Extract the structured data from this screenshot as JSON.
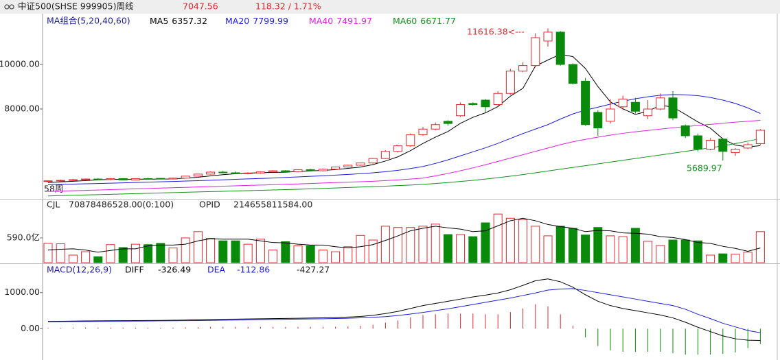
{
  "header": {
    "title": "中证500(SHSE 999905)周线",
    "price": "7047.56",
    "change": "118.32 / 1.71%"
  },
  "chart_data": [
    {
      "type": "candlestick",
      "legend_title": "MA组合(5,20,40,60)",
      "period_label": "58周",
      "annotations": [
        "11616.38<---",
        "5689.97"
      ],
      "up_color": "#e3262d",
      "down_color": "#0a8a0a",
      "open": [
        4750,
        4780,
        4800,
        4830,
        4860,
        4840,
        4880,
        4820,
        4880,
        4890,
        4860,
        4900,
        4990,
        5080,
        5170,
        5140,
        5100,
        5130,
        5180,
        5230,
        5190,
        5280,
        5230,
        5300,
        5400,
        5480,
        5580,
        5780,
        6100,
        6350,
        6850,
        7100,
        7450,
        7700,
        8250,
        8400,
        8200,
        8700,
        9700,
        9950,
        11050,
        11450,
        10000,
        9250,
        7850,
        7450,
        8100,
        8300,
        7700,
        8000,
        8500,
        7250,
        6800,
        6200,
        6650,
        6050,
        6250,
        6450
      ],
      "high": [
        4800,
        4830,
        4860,
        4880,
        4900,
        4900,
        4900,
        4900,
        4920,
        4910,
        4920,
        5000,
        5100,
        5200,
        5230,
        5200,
        5160,
        5200,
        5260,
        5260,
        5300,
        5320,
        5330,
        5420,
        5500,
        5600,
        5800,
        6150,
        6400,
        6900,
        7200,
        7400,
        7500,
        8300,
        8300,
        8450,
        8800,
        9800,
        10100,
        11400,
        11616.38,
        11500,
        10050,
        9400,
        7950,
        8450,
        8600,
        8500,
        8400,
        8700,
        8800,
        7300,
        6900,
        6700,
        6700,
        6250,
        6500,
        7100
      ],
      "low": [
        4700,
        4740,
        4780,
        4800,
        4820,
        4800,
        4800,
        4800,
        4850,
        4840,
        4840,
        4880,
        4970,
        5060,
        5120,
        5080,
        5070,
        5100,
        5150,
        5180,
        5160,
        5200,
        5200,
        5280,
        5370,
        5450,
        5550,
        5760,
        6050,
        6300,
        6800,
        7050,
        7250,
        7650,
        8150,
        7850,
        8150,
        8650,
        9650,
        9900,
        10800,
        9950,
        9100,
        7250,
        6800,
        7350,
        7950,
        7800,
        7550,
        7950,
        7500,
        6700,
        6100,
        6150,
        5689.97,
        5900,
        6200,
        6400
      ],
      "close": [
        4780,
        4800,
        4830,
        4860,
        4840,
        4880,
        4820,
        4880,
        4860,
        4860,
        4900,
        4990,
        5080,
        5170,
        5140,
        5100,
        5130,
        5180,
        5230,
        5190,
        5280,
        5230,
        5300,
        5400,
        5480,
        5580,
        5780,
        6100,
        6350,
        6850,
        7100,
        7300,
        7350,
        8200,
        8200,
        8100,
        8700,
        9700,
        9950,
        11200,
        11450,
        10000,
        9150,
        7300,
        7150,
        8000,
        8450,
        7900,
        8000,
        8500,
        7600,
        6800,
        6200,
        6600,
        6100,
        6200,
        6400,
        7047.56
      ],
      "series": [
        {
          "name": "MA5",
          "color": "#000000",
          "values": [
            4700,
            4730,
            4760,
            4790,
            4822,
            4842,
            4846,
            4856,
            4856,
            4860,
            4864,
            4902,
            4938,
            5000,
            5056,
            5096,
            5124,
            5144,
            5156,
            5166,
            5202,
            5222,
            5246,
            5280,
            5338,
            5398,
            5508,
            5668,
            5858,
            6132,
            6456,
            6740,
            6990,
            7360,
            7630,
            7830,
            8110,
            8580,
            8930,
            9930,
            10200,
            10460,
            10350,
            9820,
            9010,
            8320,
            8010,
            7760,
            7900,
            8170,
            8090,
            7760,
            7420,
            7140,
            6660,
            6380,
            6300,
            6357.32
          ]
        },
        {
          "name": "MA20",
          "color": "#1c1ce0",
          "values": [
            4600,
            4615,
            4630,
            4645,
            4660,
            4675,
            4690,
            4705,
            4720,
            4735,
            4750,
            4768,
            4786,
            4805,
            4825,
            4845,
            4865,
            4885,
            4905,
            4930,
            4955,
            4980,
            5005,
            5035,
            5065,
            5100,
            5140,
            5190,
            5250,
            5330,
            5420,
            5560,
            5720,
            5900,
            6080,
            6260,
            6460,
            6680,
            6900,
            7100,
            7300,
            7550,
            7780,
            7950,
            8080,
            8220,
            8350,
            8460,
            8550,
            8620,
            8650,
            8640,
            8600,
            8520,
            8400,
            8250,
            8050,
            7799.99
          ]
        },
        {
          "name": "MA40",
          "color": "#e020e0",
          "values": [
            4300,
            4317,
            4334,
            4351,
            4368,
            4385,
            4402,
            4419,
            4436,
            4453,
            4470,
            4487,
            4504,
            4521,
            4538,
            4555,
            4572,
            4589,
            4606,
            4623,
            4640,
            4660,
            4680,
            4700,
            4720,
            4740,
            4760,
            4790,
            4820,
            4860,
            4900,
            5000,
            5110,
            5230,
            5360,
            5500,
            5650,
            5800,
            5950,
            6100,
            6250,
            6400,
            6530,
            6640,
            6740,
            6830,
            6910,
            6980,
            7040,
            7100,
            7160,
            7210,
            7260,
            7310,
            7360,
            7410,
            7450,
            7491.97
          ]
        },
        {
          "name": "MA60",
          "color": "#14901e",
          "values": [
            4100,
            4115,
            4130,
            4145,
            4160,
            4175,
            4190,
            4205,
            4220,
            4235,
            4250,
            4265,
            4280,
            4295,
            4310,
            4325,
            4340,
            4355,
            4370,
            4385,
            4400,
            4420,
            4440,
            4460,
            4480,
            4500,
            4520,
            4540,
            4565,
            4590,
            4620,
            4660,
            4700,
            4750,
            4800,
            4860,
            4920,
            4990,
            5060,
            5140,
            5220,
            5300,
            5380,
            5460,
            5540,
            5620,
            5700,
            5780,
            5860,
            5940,
            6020,
            6100,
            6180,
            6260,
            6350,
            6450,
            6560,
            6671.77
          ]
        }
      ],
      "ylim": [
        3970,
        12215
      ],
      "yticks": [
        {
          "value": 8000,
          "label": "8000.00"
        },
        {
          "value": 10000,
          "label": "10000.00"
        }
      ]
    },
    {
      "type": "bar",
      "legend": [
        "CJL",
        "70878486528.00(0:100)",
        "OPID",
        "214655811584.00"
      ],
      "values": [
        460,
        450,
        180,
        260,
        140,
        430,
        360,
        440,
        430,
        460,
        350,
        590,
        740,
        580,
        520,
        520,
        440,
        560,
        300,
        500,
        400,
        400,
        300,
        260,
        380,
        650,
        540,
        870,
        840,
        840,
        870,
        920,
        670,
        670,
        620,
        950,
        1160,
        1060,
        1030,
        870,
        640,
        870,
        820,
        660,
        840,
        640,
        620,
        820,
        510,
        410,
        540,
        540,
        520,
        180,
        210,
        200,
        250,
        740
      ],
      "line": {
        "color": "#000000",
        "values": [
          300,
          320,
          330,
          300,
          250,
          290,
          330,
          330,
          400,
          420,
          420,
          440,
          520,
          570,
          560,
          560,
          560,
          520,
          480,
          470,
          440,
          420,
          420,
          380,
          350,
          380,
          430,
          530,
          640,
          760,
          820,
          870,
          830,
          800,
          740,
          760,
          880,
          1000,
          1060,
          1000,
          910,
          860,
          820,
          740,
          770,
          760,
          710,
          700,
          680,
          620,
          600,
          550,
          480,
          460,
          390,
          340,
          270,
          350
        ]
      },
      "ylim": [
        0,
        1490
      ],
      "yticks": [
        {
          "value": 590,
          "label": "590.0亿"
        }
      ]
    },
    {
      "type": "macd",
      "legend_title": "MACD(12,26,9)",
      "series": [
        {
          "name": "DIFF",
          "color": "#000000",
          "values": [
            200,
            205,
            210,
            215,
            218,
            220,
            222,
            225,
            228,
            230,
            235,
            240,
            248,
            256,
            262,
            266,
            270,
            275,
            280,
            284,
            290,
            295,
            300,
            310,
            322,
            340,
            370,
            420,
            480,
            560,
            640,
            700,
            760,
            820,
            880,
            930,
            990,
            1080,
            1200,
            1330,
            1380,
            1300,
            1150,
            940,
            760,
            640,
            560,
            500,
            440,
            380,
            300,
            180,
            40,
            -80,
            -200,
            -280,
            -320,
            -326.49
          ]
        },
        {
          "name": "DEA",
          "color": "#1c1ce0",
          "values": [
            190,
            193,
            196,
            199,
            202,
            205,
            208,
            211,
            214,
            217,
            220,
            223,
            226,
            230,
            235,
            240,
            245,
            250,
            255,
            260,
            265,
            270,
            275,
            282,
            290,
            300,
            315,
            335,
            365,
            405,
            450,
            500,
            550,
            610,
            670,
            730,
            790,
            850,
            920,
            990,
            1070,
            1100,
            1110,
            1060,
            1000,
            940,
            880,
            820,
            760,
            700,
            640,
            540,
            400,
            280,
            150,
            50,
            -50,
            -112.86
          ]
        }
      ],
      "histogram": {
        "up_color": "#e3262d",
        "down_color": "#0a8a0a",
        "values": [
          20,
          24,
          28,
          32,
          32,
          30,
          28,
          28,
          28,
          26,
          30,
          34,
          44,
          52,
          54,
          52,
          50,
          50,
          50,
          48,
          50,
          50,
          50,
          56,
          64,
          80,
          110,
          170,
          230,
          310,
          380,
          400,
          420,
          420,
          420,
          400,
          400,
          460,
          560,
          680,
          620,
          400,
          80,
          -240,
          -480,
          -600,
          -640,
          -640,
          -640,
          -640,
          -680,
          -720,
          -720,
          -720,
          -700,
          -660,
          -540,
          -427.27
        ]
      },
      "ylim": [
        -811,
        1774
      ],
      "yticks": [
        {
          "value": 0,
          "label": "0.00"
        },
        {
          "value": 1000,
          "label": "1000.00"
        }
      ]
    }
  ]
}
